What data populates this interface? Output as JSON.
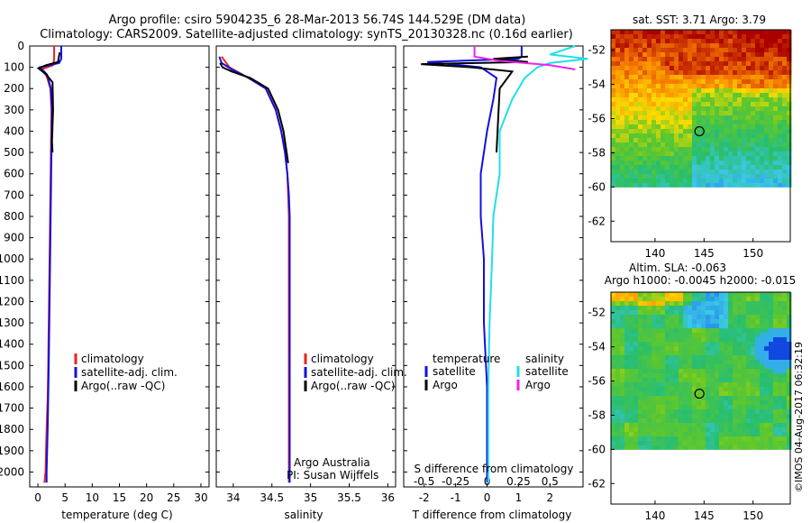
{
  "title_line1": "Argo profile: csiro 5904235_6 28-Mar-2013 56.74S 144.529E (DM data)",
  "title_line2": "Climatology: CARS2009. Satellite-adjusted climatology: synTS_20130328.nc (0.16d earlier)",
  "colors": {
    "climatology": "#e8231d",
    "satellite": "#1010e0",
    "argo": "#000000",
    "sal_satellite": "#1ee0e6",
    "sal_argo": "#ee22ee"
  },
  "depth_ticks": [
    "0",
    "100",
    "200",
    "300",
    "400",
    "500",
    "600",
    "700",
    "800",
    "900",
    "1000",
    "1100",
    "1200",
    "1300",
    "1400",
    "1500",
    "1600",
    "1700",
    "1800",
    "1900",
    "2000"
  ],
  "legend": {
    "climatology": "climatology",
    "satellite": "satellite-adj. clim.",
    "argo": "Argo(..raw -QC)"
  },
  "credit": {
    "line1": "Argo Australia",
    "line2": "PI: Susan Wijffels"
  },
  "diff_legend": {
    "temperature": "temperature",
    "salinity": "salinity",
    "satellite": "satellite",
    "argo": "Argo"
  },
  "side_text": "©IMOS 04-Aug-2017 06:32:19",
  "chart_data": [
    {
      "type": "line",
      "name": "temperature-profile",
      "xlabel": "temperature (deg C)",
      "xlim": [
        -1.5,
        31.5
      ],
      "ylim": [
        2070,
        0
      ],
      "xticks": [
        "0",
        "5",
        "10",
        "15",
        "20",
        "25",
        "30"
      ],
      "series": [
        {
          "name": "climatology",
          "x": [
            3.0,
            3.0,
            2.8,
            0.6,
            1.6,
            2.3,
            2.5,
            2.4,
            2.3,
            2.2,
            2.1,
            2.0,
            1.9,
            1.8,
            1.6,
            1.5,
            1.4,
            1.2
          ],
          "y": [
            0,
            60,
            90,
            110,
            140,
            200,
            300,
            500,
            700,
            900,
            1100,
            1300,
            1500,
            1650,
            1800,
            1900,
            2000,
            2050
          ]
        },
        {
          "name": "satellite-adj. clim.",
          "x": [
            4.3,
            4.3,
            3.9,
            0.4,
            1.7,
            2.4,
            2.6,
            2.5,
            2.4,
            2.3,
            2.2,
            2.1,
            2.0,
            1.9,
            1.8,
            1.7,
            1.6,
            1.6
          ],
          "y": [
            0,
            60,
            80,
            100,
            135,
            200,
            300,
            500,
            700,
            900,
            1100,
            1300,
            1500,
            1650,
            1800,
            1900,
            2000,
            2050
          ]
        },
        {
          "name": "Argo(..raw -QC)",
          "x": [
            4.0,
            3.8,
            3.7,
            1.5,
            0.1,
            1.4,
            2.7,
            2.8,
            2.6,
            2.7
          ],
          "y": [
            30,
            60,
            75,
            90,
            105,
            130,
            170,
            300,
            450,
            500
          ]
        }
      ]
    },
    {
      "type": "line",
      "name": "salinity-profile",
      "xlabel": "salinity",
      "xlim": [
        33.78,
        36.1
      ],
      "ylim": [
        2070,
        0
      ],
      "xticks": [
        "34",
        "34.5",
        "35",
        "35.5",
        "36"
      ],
      "series": [
        {
          "name": "climatology",
          "x": [
            33.85,
            33.95,
            34.15,
            34.42,
            34.55,
            34.62,
            34.67,
            34.7,
            34.71,
            34.72,
            34.72,
            34.72,
            34.72,
            34.72,
            34.72,
            34.72,
            34.72
          ],
          "y": [
            50,
            100,
            140,
            200,
            300,
            400,
            500,
            600,
            700,
            800,
            900,
            1100,
            1300,
            1500,
            1700,
            1900,
            2050
          ]
        },
        {
          "name": "satellite-adj. clim.",
          "x": [
            33.82,
            33.85,
            33.98,
            34.2,
            34.42,
            34.55,
            34.62,
            34.67,
            34.7,
            34.72,
            34.73,
            34.73,
            34.73,
            34.73,
            34.73,
            34.73,
            34.73
          ],
          "y": [
            50,
            80,
            110,
            150,
            200,
            300,
            400,
            500,
            600,
            700,
            800,
            1000,
            1200,
            1400,
            1600,
            1800,
            2050
          ]
        },
        {
          "name": "Argo(..raw -QC)",
          "x": [
            33.83,
            33.86,
            33.98,
            34.22,
            34.45,
            34.58,
            34.65,
            34.69,
            34.71
          ],
          "y": [
            80,
            100,
            120,
            150,
            200,
            300,
            400,
            500,
            550
          ]
        }
      ]
    },
    {
      "type": "line",
      "name": "difference-profile",
      "xlabel": "T difference from climatology",
      "xlabel_top": "S difference from climatology",
      "xlim": [
        -2.65,
        3.05
      ],
      "ylim": [
        2070,
        0
      ],
      "xticks": [
        "-2",
        "-1",
        "0",
        "1",
        "2"
      ],
      "xticks_top": [
        "-0.5",
        "-0.25",
        "0",
        "0.25",
        "0.5"
      ],
      "series": [
        {
          "name": "T satellite",
          "x": [
            1.1,
            1.1,
            1.0,
            -1.9,
            -0.2,
            0.3,
            0.2,
            0.0,
            -0.2,
            -0.2,
            -0.1,
            -0.1,
            0.0,
            0.0,
            0.0
          ],
          "y": [
            0,
            50,
            60,
            75,
            100,
            150,
            250,
            400,
            600,
            800,
            1000,
            1300,
            1600,
            1900,
            2050
          ]
        },
        {
          "name": "T Argo",
          "x": [
            1.3,
            0.2,
            1.3,
            -2.1,
            -0.5,
            0.8,
            0.4,
            0.3
          ],
          "y": [
            50,
            60,
            75,
            85,
            100,
            120,
            200,
            500
          ]
        },
        {
          "name": "S satellite",
          "x": [
            0.7,
            0.5,
            0.8,
            0.5,
            0.4,
            0.3,
            0.2,
            0.1,
            0.1,
            0.05,
            0.04,
            0.02,
            0.01,
            0.01
          ],
          "y": [
            0,
            40,
            60,
            80,
            100,
            150,
            250,
            400,
            600,
            800,
            1000,
            1300,
            1600,
            2050
          ]
        },
        {
          "name": "S Argo",
          "x": [
            -0.1,
            -0.1,
            0.1,
            0.5,
            0.7
          ],
          "y": [
            0,
            50,
            70,
            90,
            110
          ]
        }
      ]
    },
    {
      "type": "heatmap",
      "name": "sst-map",
      "title": "sat. SST: 3.71  Argo: 3.79",
      "xlim": [
        135.5,
        153.8
      ],
      "ylim": [
        -63.2,
        -50.8
      ],
      "xticks": [
        "140",
        "145",
        "150"
      ],
      "yticks": [
        "-52",
        "-54",
        "-56",
        "-58",
        "-60",
        "-62"
      ],
      "argo_position": {
        "lon": 144.529,
        "lat": -56.74
      }
    },
    {
      "type": "heatmap",
      "name": "sla-map",
      "title_line1": "Altim. SLA: -0.063",
      "title_line2": "Argo h1000: -0.0045 h2000: -0.015",
      "xlim": [
        135.5,
        153.8
      ],
      "ylim": [
        -63.2,
        -50.8
      ],
      "xticks": [
        "140",
        "145",
        "150"
      ],
      "yticks": [
        "-52",
        "-54",
        "-56",
        "-58",
        "-60",
        "-62"
      ],
      "argo_position": {
        "lon": 144.529,
        "lat": -56.74
      }
    }
  ]
}
